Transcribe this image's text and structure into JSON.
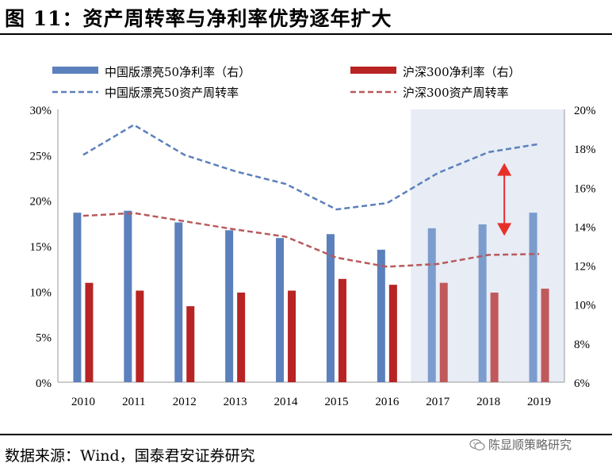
{
  "header": {
    "title": "图 11：资产周转率与净利率优势逐年扩大"
  },
  "footer": {
    "source": "数据来源：Wind，国泰君安证券研究",
    "watermark": "陈显顺策略研究"
  },
  "colors": {
    "blue_bar": "#5b80bc",
    "blue_bar_light": "#7b9ccd",
    "red_bar": "#b82323",
    "red_bar_light": "#c0595b",
    "blue_line": "#5b80bc",
    "red_line": "#b8595b",
    "forecast_shade": "#e7ecf5",
    "arrow": "#e8302a"
  },
  "chart_data": {
    "type": "bar",
    "categories": [
      "2010",
      "2011",
      "2012",
      "2013",
      "2014",
      "2015",
      "2016",
      "2017",
      "2018",
      "2019"
    ],
    "shaded_categories": [
      "2017",
      "2018",
      "2019"
    ],
    "legend_placement": "top",
    "grid": false,
    "y_left": {
      "ticks": [
        "0%",
        "5%",
        "10%",
        "15%",
        "20%",
        "25%",
        "30%"
      ],
      "lim": [
        0,
        30
      ]
    },
    "y_right": {
      "ticks": [
        "6%",
        "8%",
        "10%",
        "12%",
        "14%",
        "16%",
        "18%",
        "20%"
      ],
      "lim": [
        6,
        20
      ]
    },
    "series": [
      {
        "name": "中国版漂亮50净利率（右）",
        "kind": "bar",
        "axis": "right",
        "values": [
          14.7,
          14.8,
          14.2,
          13.8,
          13.4,
          13.6,
          12.8,
          13.9,
          14.1,
          14.7
        ]
      },
      {
        "name": "沪深300净利率（右）",
        "kind": "bar",
        "axis": "right",
        "values": [
          11.1,
          10.7,
          9.9,
          10.6,
          10.7,
          11.3,
          11.0,
          11.1,
          10.6,
          10.8
        ]
      },
      {
        "name": "中国版漂亮50资产周转率",
        "kind": "line",
        "axis": "left",
        "values": [
          25.0,
          28.3,
          25.0,
          23.2,
          21.8,
          19.0,
          19.7,
          23.0,
          25.3,
          26.2
        ]
      },
      {
        "name": "沪深300资产周转率",
        "kind": "line",
        "axis": "left",
        "values": [
          18.3,
          18.6,
          17.7,
          16.8,
          16.0,
          13.7,
          12.7,
          13.0,
          14.0,
          14.1
        ]
      }
    ],
    "annotation": {
      "type": "double-arrow",
      "category": "2018",
      "from_left_value": 16.1,
      "to_left_value": 24.1
    }
  }
}
